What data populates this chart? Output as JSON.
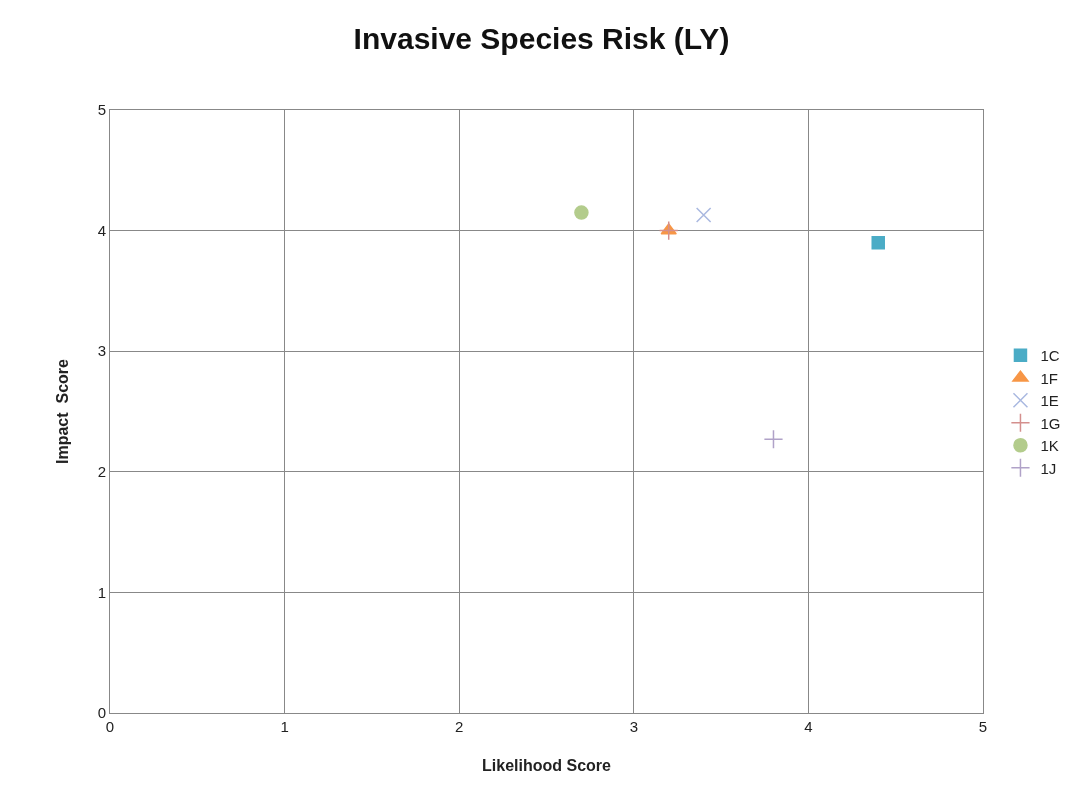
{
  "chart_data": {
    "type": "scatter",
    "title": "Invasive Species Risk (LY)",
    "xlabel": "Likelihood Score",
    "ylabel": "Impact  Score",
    "xlim": [
      0,
      5
    ],
    "xticks": [
      0,
      1,
      2,
      3,
      4,
      5
    ],
    "ylim": [
      0,
      5
    ],
    "yticks": [
      0,
      1,
      2,
      3,
      4,
      5
    ],
    "grid": true,
    "legend": "right",
    "series": [
      {
        "name": "1C",
        "color": "#4bacc6",
        "marker": "square",
        "x": [
          4.4
        ],
        "values": [
          3.9
        ]
      },
      {
        "name": "1F",
        "color": "#f79646",
        "marker": "triangle",
        "x": [
          3.2
        ],
        "values": [
          4.0
        ]
      },
      {
        "name": "1E",
        "color": "#a9b8e0",
        "marker": "x",
        "x": [
          3.4
        ],
        "values": [
          4.13
        ]
      },
      {
        "name": "1G",
        "color": "#d48f8d",
        "marker": "cross",
        "x": [
          3.2
        ],
        "values": [
          4.0
        ]
      },
      {
        "name": "1K",
        "color": "#b3cc8c",
        "marker": "circle",
        "x": [
          2.7
        ],
        "values": [
          4.15
        ]
      },
      {
        "name": "1J",
        "color": "#b0a2c8",
        "marker": "cross",
        "x": [
          3.8
        ],
        "values": [
          2.27
        ]
      }
    ]
  }
}
